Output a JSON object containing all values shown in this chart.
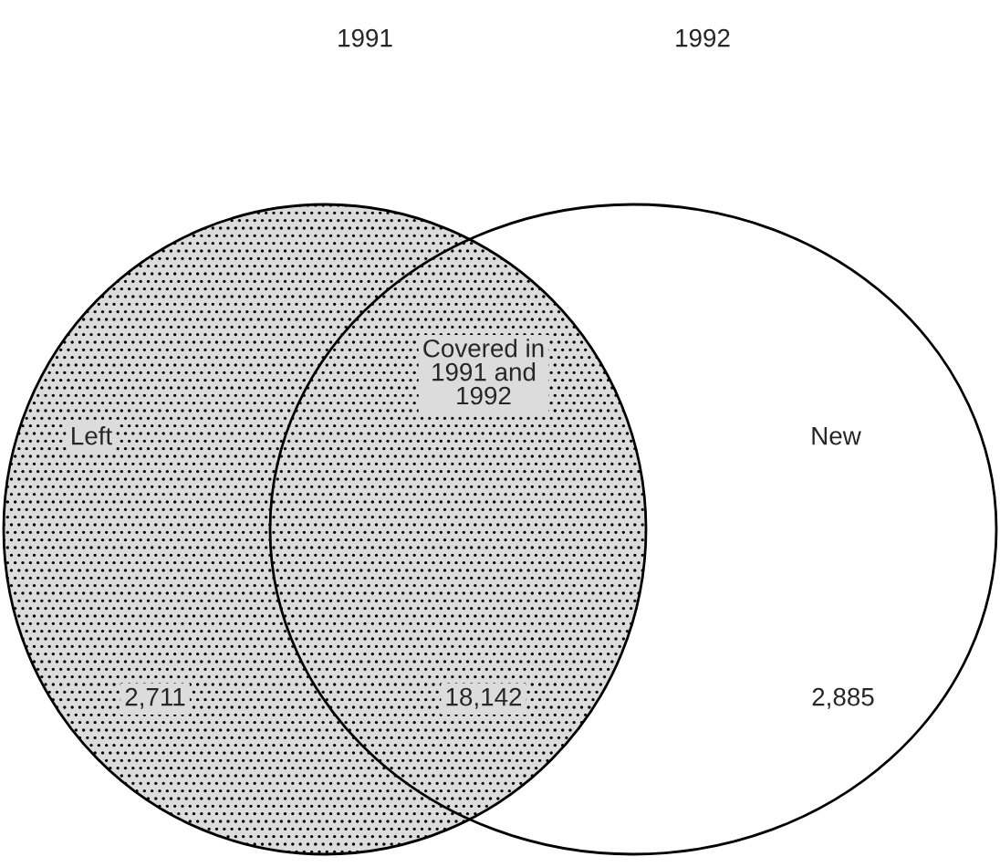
{
  "chart_data": {
    "type": "other",
    "annotations": [
      "1991",
      "1992"
    ],
    "categories": [
      "Left",
      "Covered in\n1991 and\n1992",
      "New"
    ],
    "values": [
      2711,
      18142,
      2885
    ],
    "value_labels": [
      "2,711",
      "18,142",
      "2,885"
    ]
  }
}
